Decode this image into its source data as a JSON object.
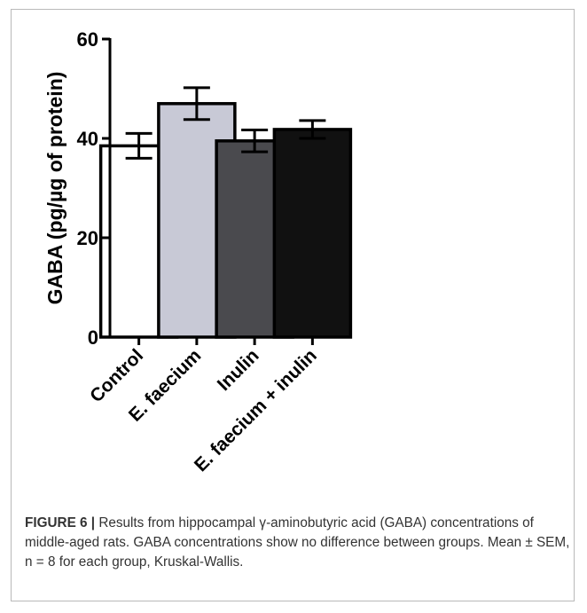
{
  "chart_data": {
    "type": "bar",
    "ylabel": "GABA (pg/µg of protein)",
    "ylim": [
      0,
      60
    ],
    "yticks": [
      0,
      20,
      40,
      60
    ],
    "grid": false,
    "categories": [
      "Control",
      "E. faecium",
      "Inulin",
      "E. faecium + inulin"
    ],
    "values": [
      38.5,
      47.0,
      39.5,
      41.8
    ],
    "errors": [
      2.5,
      3.2,
      2.2,
      1.8
    ],
    "colors": [
      "#ffffff",
      "#c8c9d6",
      "#4a4a4e",
      "#111111"
    ]
  },
  "caption": {
    "label": "FIGURE 6 |",
    "text": "Results from hippocampal γ-aminobutyric acid (GABA) concentrations of middle-aged rats. GABA concentrations show no difference between groups. Mean ± SEM, n = 8 for each group, Kruskal-Wallis."
  }
}
